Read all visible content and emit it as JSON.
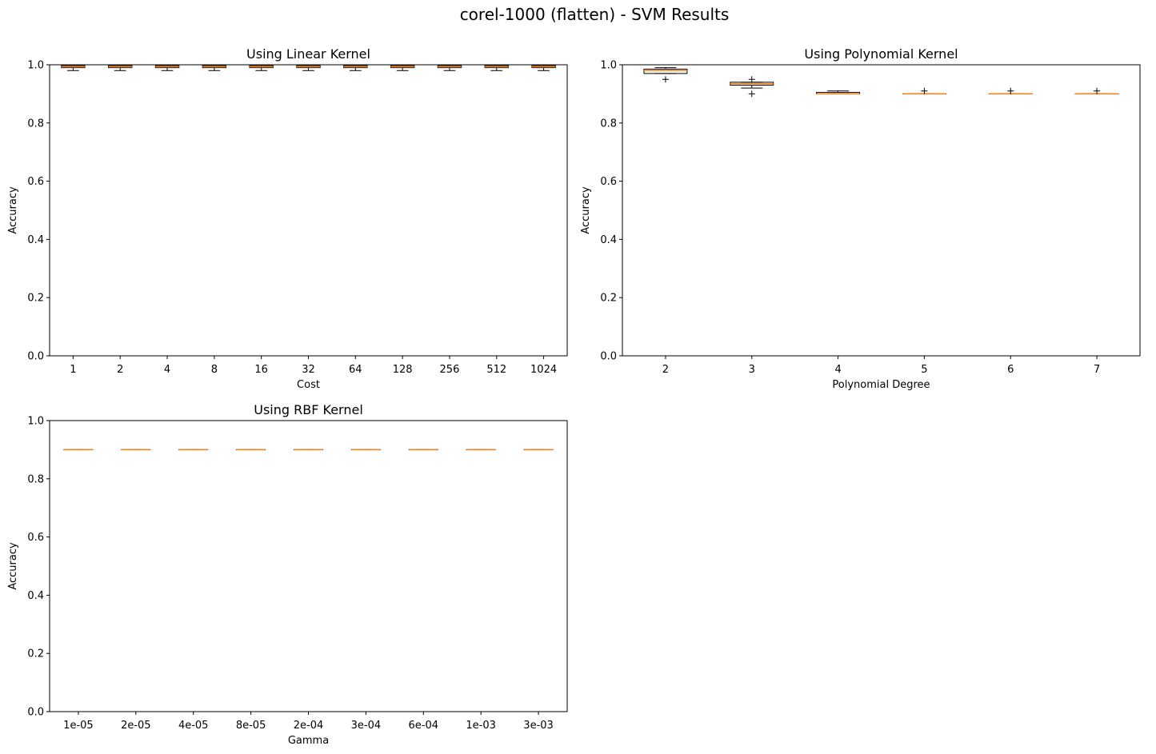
{
  "figure": {
    "title": "corel-1000 (flatten) - SVM Results"
  },
  "colors": {
    "median": "#ff7f0e",
    "box": "#000000",
    "background": "#ffffff"
  },
  "chart_data": [
    {
      "type": "boxplot",
      "title": "Using Linear Kernel",
      "xlabel": "Cost",
      "ylabel": "Accuracy",
      "ylim": [
        0,
        1
      ],
      "yticks": [
        "0.0",
        "0.2",
        "0.4",
        "0.6",
        "0.8",
        "1.0"
      ],
      "categories": [
        "1",
        "2",
        "4",
        "8",
        "16",
        "32",
        "64",
        "128",
        "256",
        "512",
        "1024"
      ],
      "boxes": [
        {
          "whislo": 0.98,
          "q1": 0.99,
          "med": 0.993,
          "q3": 0.997,
          "whishi": 1.0,
          "fliers": []
        },
        {
          "whislo": 0.98,
          "q1": 0.99,
          "med": 0.993,
          "q3": 0.997,
          "whishi": 1.0,
          "fliers": []
        },
        {
          "whislo": 0.98,
          "q1": 0.99,
          "med": 0.993,
          "q3": 0.997,
          "whishi": 1.0,
          "fliers": []
        },
        {
          "whislo": 0.98,
          "q1": 0.99,
          "med": 0.993,
          "q3": 0.997,
          "whishi": 1.0,
          "fliers": []
        },
        {
          "whislo": 0.98,
          "q1": 0.99,
          "med": 0.993,
          "q3": 0.997,
          "whishi": 1.0,
          "fliers": []
        },
        {
          "whislo": 0.98,
          "q1": 0.99,
          "med": 0.993,
          "q3": 0.997,
          "whishi": 1.0,
          "fliers": []
        },
        {
          "whislo": 0.98,
          "q1": 0.99,
          "med": 0.993,
          "q3": 0.997,
          "whishi": 1.0,
          "fliers": []
        },
        {
          "whislo": 0.98,
          "q1": 0.99,
          "med": 0.993,
          "q3": 0.997,
          "whishi": 1.0,
          "fliers": []
        },
        {
          "whislo": 0.98,
          "q1": 0.99,
          "med": 0.993,
          "q3": 0.997,
          "whishi": 1.0,
          "fliers": []
        },
        {
          "whislo": 0.98,
          "q1": 0.99,
          "med": 0.993,
          "q3": 0.997,
          "whishi": 1.0,
          "fliers": []
        },
        {
          "whislo": 0.98,
          "q1": 0.99,
          "med": 0.993,
          "q3": 0.997,
          "whishi": 1.0,
          "fliers": []
        }
      ]
    },
    {
      "type": "boxplot",
      "title": "Using Polynomial Kernel",
      "xlabel": "Polynomial Degree",
      "ylabel": "Accuracy",
      "ylim": [
        0,
        1
      ],
      "yticks": [
        "0.0",
        "0.2",
        "0.4",
        "0.6",
        "0.8",
        "1.0"
      ],
      "categories": [
        "2",
        "3",
        "4",
        "5",
        "6",
        "7"
      ],
      "boxes": [
        {
          "whislo": 0.97,
          "q1": 0.97,
          "med": 0.98,
          "q3": 0.985,
          "whishi": 0.99,
          "fliers": [
            0.95
          ]
        },
        {
          "whislo": 0.92,
          "q1": 0.93,
          "med": 0.935,
          "q3": 0.94,
          "whishi": 0.94,
          "fliers": [
            0.9,
            0.95
          ]
        },
        {
          "whislo": 0.9,
          "q1": 0.9,
          "med": 0.9,
          "q3": 0.905,
          "whishi": 0.91,
          "fliers": []
        },
        {
          "whislo": 0.9,
          "q1": 0.9,
          "med": 0.9,
          "q3": 0.9,
          "whishi": 0.9,
          "fliers": [
            0.91
          ]
        },
        {
          "whislo": 0.9,
          "q1": 0.9,
          "med": 0.9,
          "q3": 0.9,
          "whishi": 0.9,
          "fliers": [
            0.91
          ]
        },
        {
          "whislo": 0.9,
          "q1": 0.9,
          "med": 0.9,
          "q3": 0.9,
          "whishi": 0.9,
          "fliers": [
            0.91
          ]
        }
      ]
    },
    {
      "type": "boxplot",
      "title": "Using RBF Kernel",
      "xlabel": "Gamma",
      "ylabel": "Accuracy",
      "ylim": [
        0,
        1
      ],
      "yticks": [
        "0.0",
        "0.2",
        "0.4",
        "0.6",
        "0.8",
        "1.0"
      ],
      "categories": [
        "1e-05",
        "2e-05",
        "4e-05",
        "8e-05",
        "2e-04",
        "3e-04",
        "6e-04",
        "1e-03",
        "3e-03"
      ],
      "boxes": [
        {
          "whislo": 0.9,
          "q1": 0.9,
          "med": 0.9,
          "q3": 0.9,
          "whishi": 0.9,
          "fliers": []
        },
        {
          "whislo": 0.9,
          "q1": 0.9,
          "med": 0.9,
          "q3": 0.9,
          "whishi": 0.9,
          "fliers": []
        },
        {
          "whislo": 0.9,
          "q1": 0.9,
          "med": 0.9,
          "q3": 0.9,
          "whishi": 0.9,
          "fliers": []
        },
        {
          "whislo": 0.9,
          "q1": 0.9,
          "med": 0.9,
          "q3": 0.9,
          "whishi": 0.9,
          "fliers": []
        },
        {
          "whislo": 0.9,
          "q1": 0.9,
          "med": 0.9,
          "q3": 0.9,
          "whishi": 0.9,
          "fliers": []
        },
        {
          "whislo": 0.9,
          "q1": 0.9,
          "med": 0.9,
          "q3": 0.9,
          "whishi": 0.9,
          "fliers": []
        },
        {
          "whislo": 0.9,
          "q1": 0.9,
          "med": 0.9,
          "q3": 0.9,
          "whishi": 0.9,
          "fliers": []
        },
        {
          "whislo": 0.9,
          "q1": 0.9,
          "med": 0.9,
          "q3": 0.9,
          "whishi": 0.9,
          "fliers": []
        },
        {
          "whislo": 0.9,
          "q1": 0.9,
          "med": 0.9,
          "q3": 0.9,
          "whishi": 0.9,
          "fliers": []
        }
      ]
    }
  ]
}
